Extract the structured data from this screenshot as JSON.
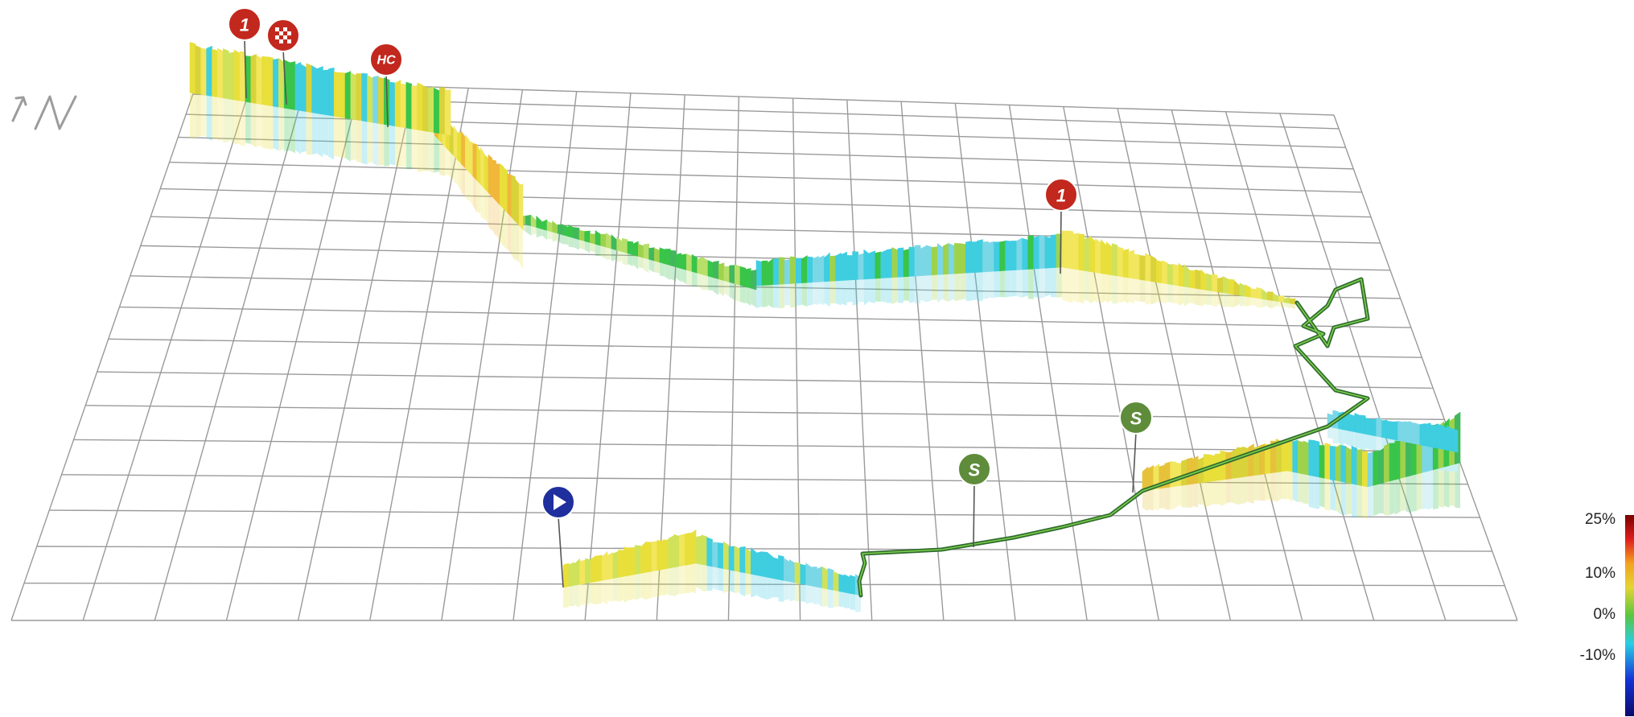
{
  "legend": {
    "labels": [
      "25%",
      "10%",
      "0%",
      "-10%"
    ],
    "colors": [
      "#7a0000",
      "#e01d1d",
      "#f3a21f",
      "#e3d532",
      "#59c640",
      "#29cde6",
      "#1432d6",
      "#0a0a6b"
    ]
  },
  "markers": [
    {
      "name": "start-marker",
      "type": "start",
      "label": "",
      "color": "#1f2f9e"
    },
    {
      "name": "sprint-marker-1",
      "type": "sprint",
      "label": "S",
      "color": "#5e8c3a"
    },
    {
      "name": "sprint-marker-2",
      "type": "sprint",
      "label": "S",
      "color": "#5e8c3a"
    },
    {
      "name": "climb-cat1-marker-east",
      "type": "climb",
      "label": "1",
      "color": "#c2281d"
    },
    {
      "name": "climb-hc-marker",
      "type": "climb",
      "label": "HC",
      "color": "#c2281d"
    },
    {
      "name": "finish-marker",
      "type": "finish",
      "label": "",
      "color": "#c2281d"
    },
    {
      "name": "climb-cat1-marker-west",
      "type": "climb",
      "label": "1",
      "color": "#c2281d"
    }
  ],
  "icons": {
    "top_left": "route-elevation-icon"
  }
}
